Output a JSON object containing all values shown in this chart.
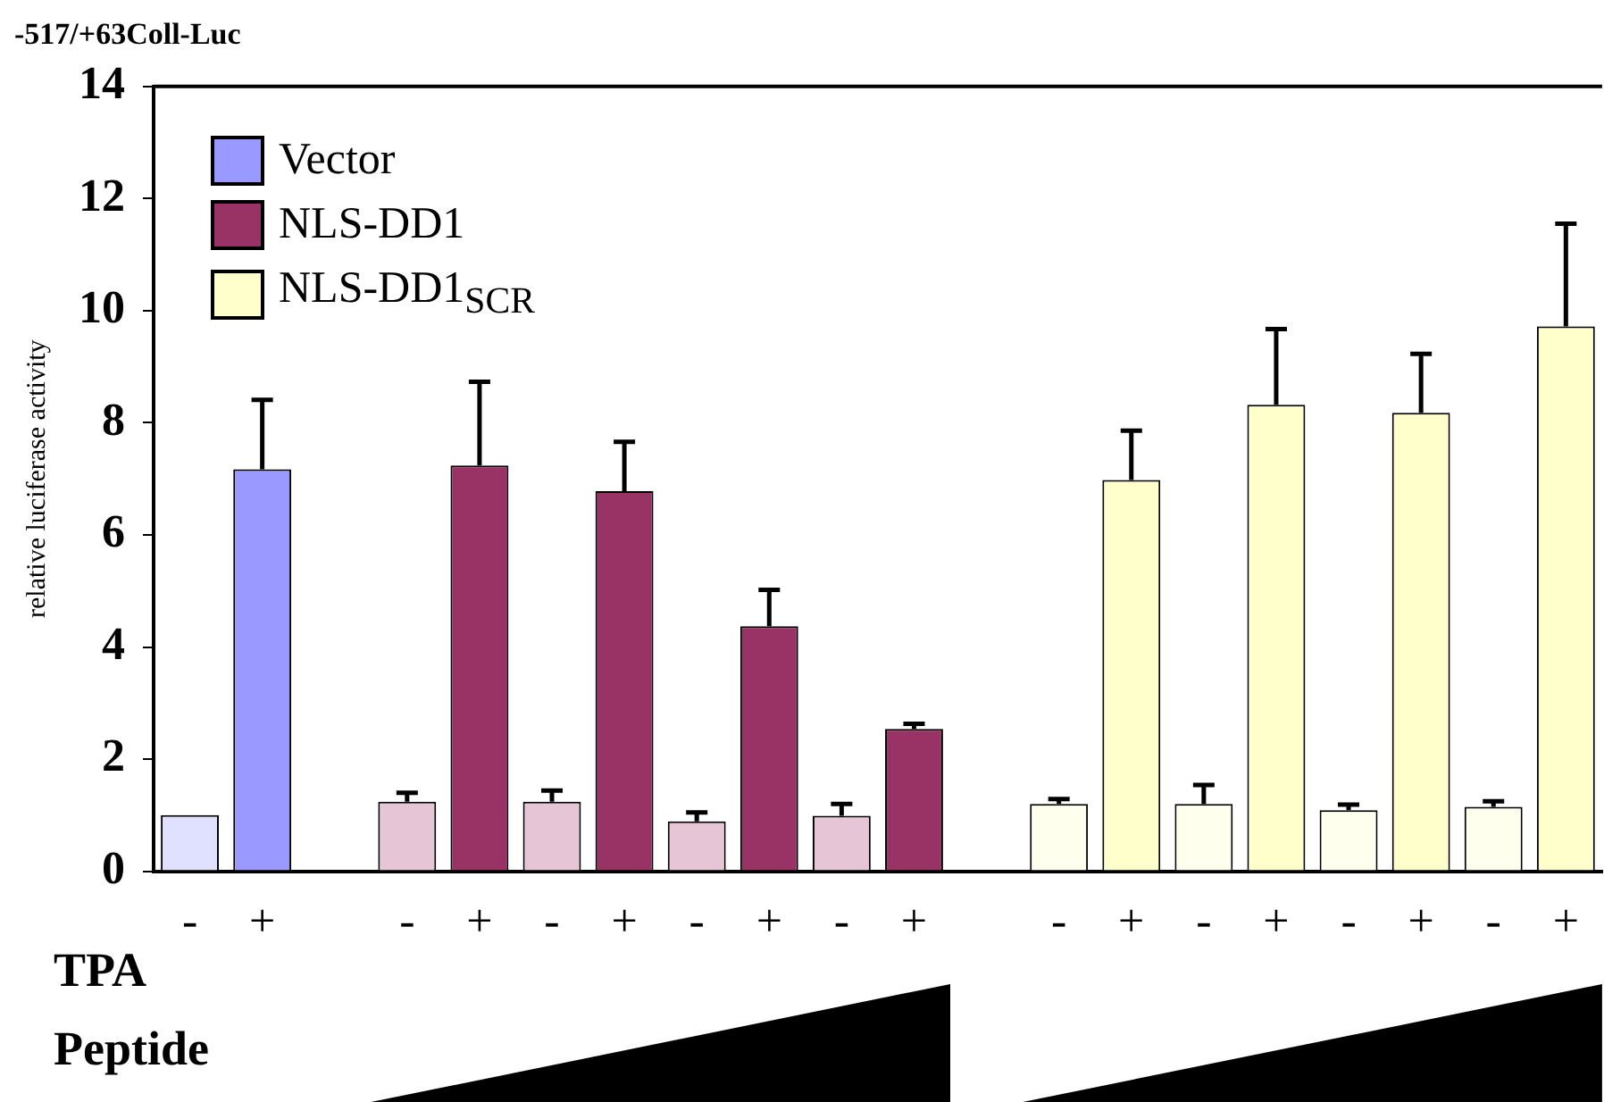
{
  "chart_data": {
    "type": "bar",
    "title": "-517/+63Coll-Luc",
    "ylabel": "relative luciferase activity",
    "categories": [
      "-",
      "+",
      null,
      "-",
      "+",
      "-",
      "+",
      "-",
      "+",
      "-",
      "+",
      null,
      "-",
      "+",
      "-",
      "+",
      "-",
      "+",
      "-",
      "+"
    ],
    "series": [
      {
        "name": "Vector",
        "color": "#9999ff",
        "colors": [
          "#e0e0ff",
          "#9999ff",
          null,
          null,
          null,
          null,
          null,
          null,
          null,
          null,
          null,
          null,
          null,
          null,
          null,
          null,
          null,
          null,
          null,
          null
        ],
        "values": [
          1.0,
          7.17,
          null,
          null,
          null,
          null,
          null,
          null,
          null,
          null,
          null,
          null,
          null,
          null,
          null,
          null,
          null,
          null,
          null,
          null
        ],
        "errors": [
          null,
          [
            7.17,
            8.41
          ],
          null,
          null,
          null,
          null,
          null,
          null,
          null,
          null,
          null,
          null,
          null,
          null,
          null,
          null,
          null,
          null,
          null,
          null
        ]
      },
      {
        "name": "NLS-DD1",
        "color": "#993366",
        "colors": [
          null,
          null,
          null,
          "#e6c6d6",
          "#993366",
          "#e6c6d6",
          "#993366",
          "#e6c6d6",
          "#993366",
          "#e6c6d6",
          "#993366",
          null,
          null,
          null,
          null,
          null,
          null,
          null,
          null,
          null
        ],
        "values": [
          null,
          null,
          null,
          1.24,
          7.24,
          1.24,
          6.78,
          0.89,
          4.37,
          0.99,
          2.54,
          null,
          null,
          null,
          null,
          null,
          null,
          null,
          null,
          null
        ],
        "errors": [
          null,
          null,
          null,
          [
            1.24,
            1.4
          ],
          [
            7.24,
            8.73
          ],
          [
            1.24,
            1.44
          ],
          [
            6.78,
            7.66
          ],
          [
            0.89,
            1.05
          ],
          [
            4.37,
            5.02
          ],
          [
            0.99,
            1.2
          ],
          [
            2.54,
            2.63
          ],
          null,
          null,
          null,
          null,
          null,
          null,
          null,
          null,
          null
        ]
      },
      {
        "name": "NLS-DD1$_{SCR}$",
        "color": "#ffffcc",
        "colors": [
          null,
          null,
          null,
          null,
          null,
          null,
          null,
          null,
          null,
          null,
          null,
          null,
          "#ffffee",
          "#ffffcc",
          "#ffffee",
          "#ffffcc",
          "#ffffee",
          "#ffffcc",
          "#ffffee",
          "#ffffcc"
        ],
        "values": [
          null,
          null,
          null,
          null,
          null,
          null,
          null,
          null,
          null,
          null,
          null,
          null,
          1.2,
          6.98,
          1.2,
          8.32,
          1.09,
          8.18,
          1.15,
          9.72
        ],
        "errors": [
          null,
          null,
          null,
          null,
          null,
          null,
          null,
          null,
          null,
          null,
          null,
          null,
          [
            1.2,
            1.29
          ],
          [
            6.98,
            7.86
          ],
          [
            1.2,
            1.54
          ],
          [
            8.32,
            9.67
          ],
          [
            1.09,
            1.19
          ],
          [
            8.18,
            9.23
          ],
          [
            1.15,
            1.25
          ],
          [
            9.72,
            11.55
          ]
        ]
      }
    ],
    "ylim": [
      0,
      14
    ],
    "yticks": [
      0,
      2,
      4,
      6,
      8,
      10,
      12,
      14
    ],
    "grid": false,
    "legend": "top left",
    "annotations": [
      "TPA",
      "Peptide"
    ]
  }
}
